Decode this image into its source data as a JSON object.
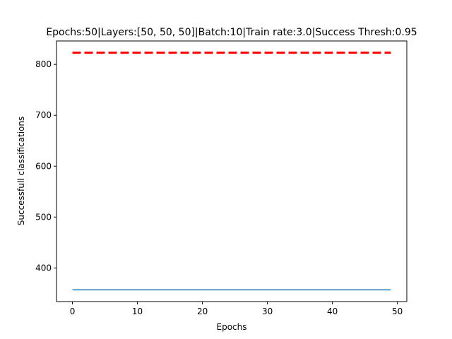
{
  "chart_data": {
    "type": "line",
    "title": "Epochs:50|Layers:[50, 50, 50]|Batch:10|Train rate:3.0|Success Thresh:0.95",
    "xlabel": "Epochs",
    "ylabel": "Successfull classifications",
    "xlim": [
      -2.45,
      51.45
    ],
    "ylim": [
      334,
      846
    ],
    "xticks": [
      0,
      10,
      20,
      30,
      40,
      50
    ],
    "yticks": [
      400,
      500,
      600,
      700,
      800
    ],
    "grid": false,
    "series": [
      {
        "color": "#1f77b4",
        "style": "solid",
        "x_start": 0,
        "x_end": 49,
        "value": 357
      },
      {
        "color": "#ff0000",
        "style": "dashed",
        "x_start": 0,
        "x_end": 49,
        "value": 823
      }
    ]
  }
}
